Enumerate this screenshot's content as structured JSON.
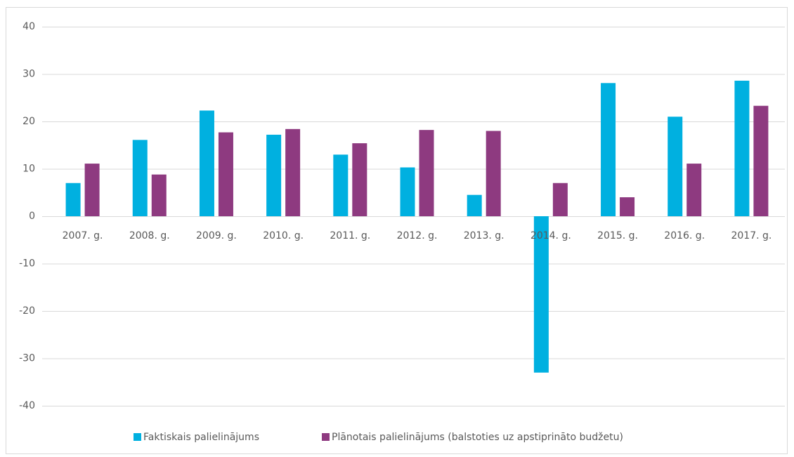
{
  "chart_data": {
    "type": "bar",
    "categories": [
      "2007. g.",
      "2008. g.",
      "2009. g.",
      "2010. g.",
      "2011. g.",
      "2012. g.",
      "2013. g.",
      "2014. g.",
      "2015. g.",
      "2016. g.",
      "2017. g."
    ],
    "series": [
      {
        "name": "Faktiskais palielinājums",
        "color": "#00b0e0",
        "values": [
          7,
          16.1,
          22.3,
          17.2,
          13,
          10.3,
          4.5,
          -33,
          28.1,
          21,
          28.6
        ]
      },
      {
        "name": "Plānotais palielinājums (balstoties uz apstiprināto budžetu)",
        "color": "#8e3a80",
        "values": [
          11.1,
          8.8,
          17.7,
          18.4,
          15.4,
          18.2,
          18,
          7,
          4,
          11.1,
          23.3
        ]
      }
    ],
    "ylim": [
      -40,
      40
    ],
    "yticks": [
      -40,
      -30,
      -20,
      -10,
      0,
      10,
      20,
      30,
      40
    ],
    "grid": true,
    "legend": "bottom"
  }
}
